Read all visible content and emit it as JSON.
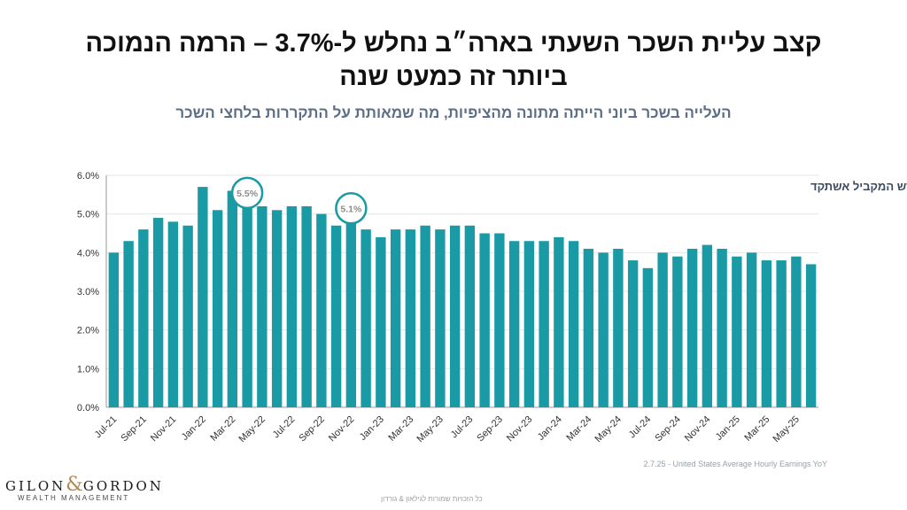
{
  "title_line1": "קצב עליית השכר השעתי בארה״ב נחלש ל-3.7% – הרמה הנמוכה",
  "title_line2": "ביותר זה כמעט שנה",
  "subtitle": "העלייה בשכר ביוני הייתה מתונה מהציפיות, מה שמאותת על התקררות בלחצי השכר",
  "source": "2.7.25 - United States Average Hourly Earnings YoY",
  "copyright": "כל הזכויות שמורות לגילאון & גורדון",
  "logo": {
    "name_left": "GILON",
    "ampersand": "&",
    "name_right": "GORDON",
    "tagline": "WEALTH MANAGEMENT"
  },
  "colors": {
    "bar": "#1a9aa5",
    "callout_ring": "#1a9aa5",
    "title": "#111111",
    "subtitle": "#5c6f86"
  },
  "chart_data": {
    "type": "bar",
    "title": "השינוי בשכר השעתי - ביחס לחודש המקביל אשתקד",
    "y_unit": "%",
    "ylim": [
      0,
      6
    ],
    "y_ticks": [
      "0.0%",
      "1.0%",
      "2.0%",
      "3.0%",
      "4.0%",
      "5.0%",
      "6.0%"
    ],
    "grid": true,
    "categories": [
      "Jul-21",
      "Aug-21",
      "Sep-21",
      "Oct-21",
      "Nov-21",
      "Dec-21",
      "Jan-22",
      "Feb-22",
      "Mar-22",
      "Apr-22",
      "May-22",
      "Jun-22",
      "Jul-22",
      "Aug-22",
      "Sep-22",
      "Oct-22",
      "Nov-22",
      "Dec-22",
      "Jan-23",
      "Feb-23",
      "Mar-23",
      "Apr-23",
      "May-23",
      "Jun-23",
      "Jul-23",
      "Aug-23",
      "Sep-23",
      "Oct-23",
      "Nov-23",
      "Dec-23",
      "Jan-24",
      "Feb-24",
      "Mar-24",
      "Apr-24",
      "May-24",
      "Jun-24",
      "Jul-24",
      "Aug-24",
      "Sep-24",
      "Oct-24",
      "Nov-24",
      "Dec-24",
      "Jan-25",
      "Feb-25",
      "Mar-25",
      "Apr-25",
      "May-25",
      "Jun-25"
    ],
    "values": [
      4.0,
      4.3,
      4.6,
      4.9,
      4.8,
      4.7,
      5.7,
      5.1,
      5.6,
      5.5,
      5.2,
      5.1,
      5.2,
      5.2,
      5.0,
      4.7,
      5.1,
      4.6,
      4.4,
      4.6,
      4.6,
      4.7,
      4.6,
      4.7,
      4.7,
      4.5,
      4.5,
      4.3,
      4.3,
      4.3,
      4.4,
      4.3,
      4.1,
      4.0,
      4.1,
      3.8,
      3.6,
      4.0,
      3.9,
      4.1,
      4.2,
      4.1,
      3.9,
      4.0,
      3.8,
      3.8,
      3.9,
      3.7
    ],
    "x_tick_labels": [
      "Jul-21",
      "Sep-21",
      "Nov-21",
      "Jan-22",
      "Mar-22",
      "May-22",
      "Jul-22",
      "Sep-22",
      "Nov-22",
      "Jan-23",
      "Mar-23",
      "May-23",
      "Jul-23",
      "Sep-23",
      "Nov-23",
      "Jan-24",
      "Mar-24",
      "May-24",
      "Jul-24",
      "Sep-24",
      "Nov-24",
      "Jan-25",
      "Mar-25",
      "May-25"
    ],
    "annotations": [
      {
        "category": "Apr-22",
        "label": "5.5%"
      },
      {
        "category": "Nov-22",
        "label": "5.1%"
      }
    ]
  }
}
